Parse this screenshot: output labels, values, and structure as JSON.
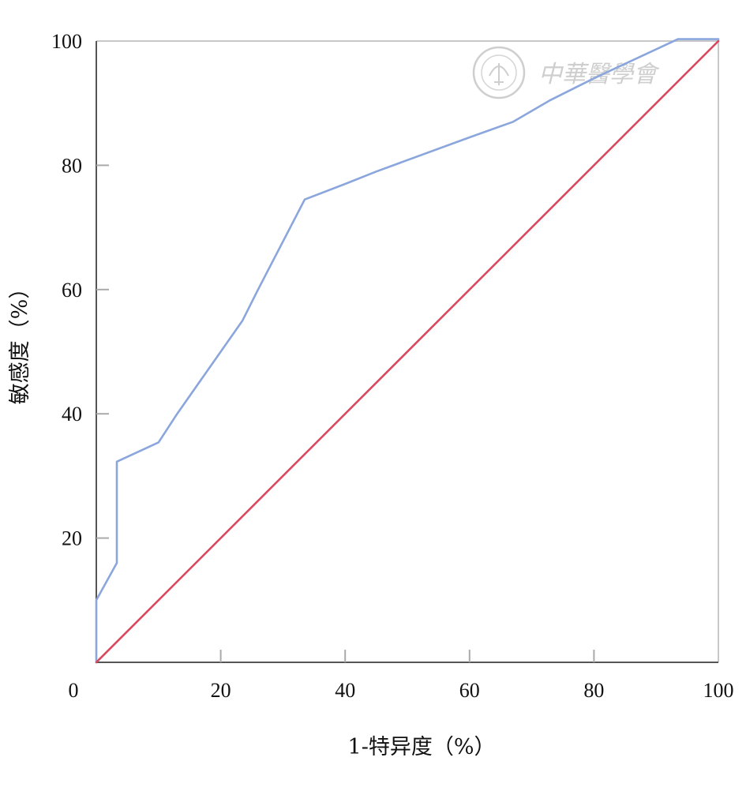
{
  "chart_data": {
    "type": "line",
    "xlabel": "1-特异度（%）",
    "ylabel": "敏感度（%）",
    "xlim": [
      0,
      100
    ],
    "ylim": [
      0,
      100
    ],
    "x_ticks": [
      0,
      20,
      40,
      60,
      80,
      100
    ],
    "y_ticks": [
      0,
      20,
      40,
      60,
      80,
      100
    ],
    "grid": false,
    "series": [
      {
        "color": "#8aa6dc",
        "x": [
          0,
          0,
          3.3,
          3.3,
          10,
          13,
          20,
          23.5,
          26,
          33.5,
          40,
          45,
          60,
          67,
          73,
          80,
          93.5,
          100
        ],
        "y": [
          0,
          10,
          16,
          32.3,
          35.4,
          40,
          50,
          55,
          60,
          74.5,
          77,
          79,
          84.5,
          87,
          90.5,
          94,
          100.3,
          100.3
        ]
      },
      {
        "color": "#d9485f",
        "x": [
          0,
          100
        ],
        "y": [
          0,
          100
        ]
      }
    ]
  },
  "watermark": {
    "text": "中華醫學會"
  }
}
